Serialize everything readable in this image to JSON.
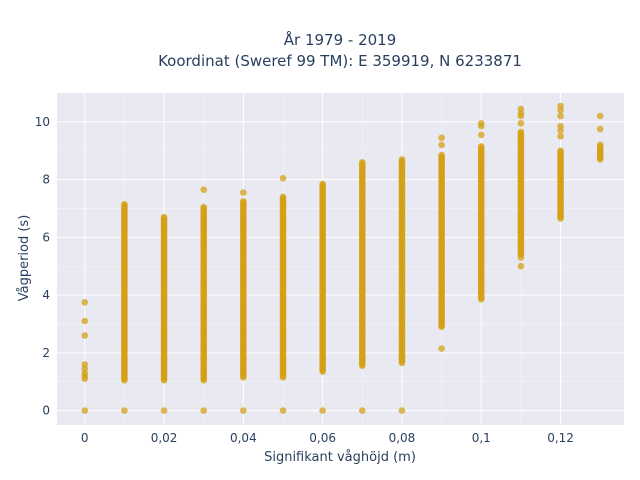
{
  "chart_data": {
    "type": "scatter",
    "title": "År 1979 - 2019",
    "subtitle": "Koordinat (Sweref 99 TM): E 359919, N 6233871",
    "xlabel": "Signifikant våghöjd (m)",
    "ylabel": "Vågperiod (s)",
    "xlim": [
      -0.007,
      0.136
    ],
    "ylim": [
      -0.5,
      11.0
    ],
    "x_ticks": [
      0,
      0.02,
      0.04,
      0.06,
      0.08,
      0.1,
      0.12
    ],
    "x_tick_labels": [
      "0",
      "0,02",
      "0,04",
      "0,06",
      "0,08",
      "0,1",
      "0,12"
    ],
    "y_ticks": [
      0,
      2,
      4,
      6,
      8,
      10
    ],
    "y_tick_labels": [
      "0",
      "2",
      "4",
      "6",
      "8",
      "10"
    ],
    "grid": true,
    "plot_background": "#e9e9f1",
    "marker_color": "#d4a017",
    "series": [
      {
        "columns": [
          {
            "x": 0.0,
            "ranges": [],
            "points": [
              0.0,
              1.1,
              1.2,
              1.3,
              1.45,
              1.6,
              2.6,
              3.1,
              3.75
            ]
          },
          {
            "x": 0.01,
            "ranges": [
              [
                1.05,
                7.15
              ]
            ],
            "points": [
              0.0
            ]
          },
          {
            "x": 0.02,
            "ranges": [
              [
                1.05,
                6.7
              ]
            ],
            "points": [
              0.0
            ]
          },
          {
            "x": 0.03,
            "ranges": [
              [
                1.05,
                7.05
              ]
            ],
            "points": [
              0.0,
              7.65
            ]
          },
          {
            "x": 0.04,
            "ranges": [
              [
                1.15,
                7.25
              ]
            ],
            "points": [
              0.0,
              7.55
            ]
          },
          {
            "x": 0.05,
            "ranges": [
              [
                1.15,
                7.4
              ]
            ],
            "points": [
              0.0,
              8.05
            ]
          },
          {
            "x": 0.06,
            "ranges": [
              [
                1.35,
                7.85
              ]
            ],
            "points": [
              0.0
            ]
          },
          {
            "x": 0.07,
            "ranges": [
              [
                1.55,
                8.6
              ]
            ],
            "points": [
              0.0
            ]
          },
          {
            "x": 0.08,
            "ranges": [
              [
                1.65,
                8.7
              ]
            ],
            "points": [
              0.0
            ]
          },
          {
            "x": 0.09,
            "ranges": [
              [
                2.9,
                8.85
              ]
            ],
            "points": [
              2.15,
              9.2,
              9.45
            ]
          },
          {
            "x": 0.1,
            "ranges": [
              [
                3.85,
                9.15
              ]
            ],
            "points": [
              9.55,
              9.85,
              9.95
            ]
          },
          {
            "x": 0.11,
            "ranges": [
              [
                5.4,
                9.65
              ]
            ],
            "points": [
              5.0,
              5.3,
              9.95,
              10.2,
              10.3,
              10.45
            ]
          },
          {
            "x": 0.12,
            "ranges": [
              [
                6.65,
                9.0
              ]
            ],
            "points": [
              9.5,
              9.7,
              9.85,
              10.2,
              10.4,
              10.55
            ]
          },
          {
            "x": 0.13,
            "ranges": [
              [
                8.7,
                9.2
              ]
            ],
            "points": [
              9.75,
              10.2
            ]
          }
        ]
      }
    ]
  }
}
